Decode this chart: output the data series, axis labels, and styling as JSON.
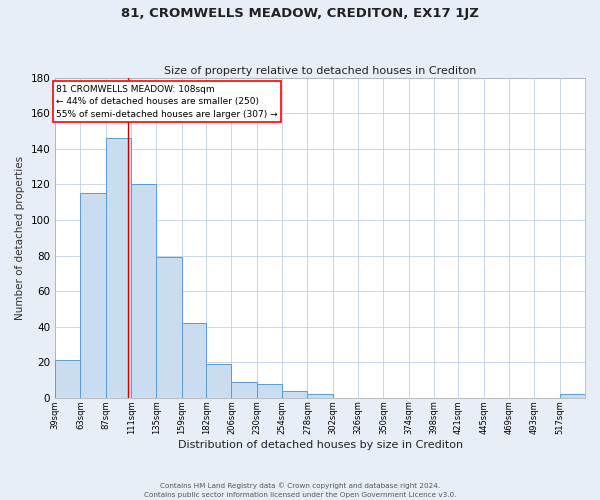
{
  "title": "81, CROMWELLS MEADOW, CREDITON, EX17 1JZ",
  "subtitle": "Size of property relative to detached houses in Crediton",
  "xlabel": "Distribution of detached houses by size in Crediton",
  "ylabel": "Number of detached properties",
  "bin_edges": [
    39,
    63,
    87,
    111,
    135,
    159,
    182,
    206,
    230,
    254,
    278,
    302,
    326,
    350,
    374,
    398,
    421,
    445,
    469,
    493,
    517,
    541
  ],
  "bar_heights": [
    21,
    115,
    146,
    120,
    79,
    42,
    19,
    9,
    8,
    4,
    2,
    0,
    0,
    0,
    0,
    0,
    0,
    0,
    0,
    0,
    2
  ],
  "bar_color": "#c9dcf0",
  "bar_edge_color": "#5b9bd5",
  "red_line_x": 108,
  "ylim": [
    0,
    180
  ],
  "yticks": [
    0,
    20,
    40,
    60,
    80,
    100,
    120,
    140,
    160,
    180
  ],
  "xtick_positions": [
    39,
    63,
    87,
    111,
    135,
    159,
    182,
    206,
    230,
    254,
    278,
    302,
    326,
    350,
    374,
    398,
    421,
    445,
    469,
    493,
    517
  ],
  "xtick_labels": [
    "39sqm",
    "63sqm",
    "87sqm",
    "111sqm",
    "135sqm",
    "159sqm",
    "182sqm",
    "206sqm",
    "230sqm",
    "254sqm",
    "278sqm",
    "302sqm",
    "326sqm",
    "350sqm",
    "374sqm",
    "398sqm",
    "421sqm",
    "445sqm",
    "469sqm",
    "493sqm",
    "517sqm"
  ],
  "annotation_title": "81 CROMWELLS MEADOW: 108sqm",
  "annotation_line1": "← 44% of detached houses are smaller (250)",
  "annotation_line2": "55% of semi-detached houses are larger (307) →",
  "footer_line1": "Contains HM Land Registry data © Crown copyright and database right 2024.",
  "footer_line2": "Contains public sector information licensed under the Open Government Licence v3.0.",
  "fig_bg_color": "#e8eef7",
  "plot_bg_color": "#ffffff",
  "grid_color": "#c0d0e8",
  "title_color": "#222222",
  "ylabel_color": "#333333"
}
